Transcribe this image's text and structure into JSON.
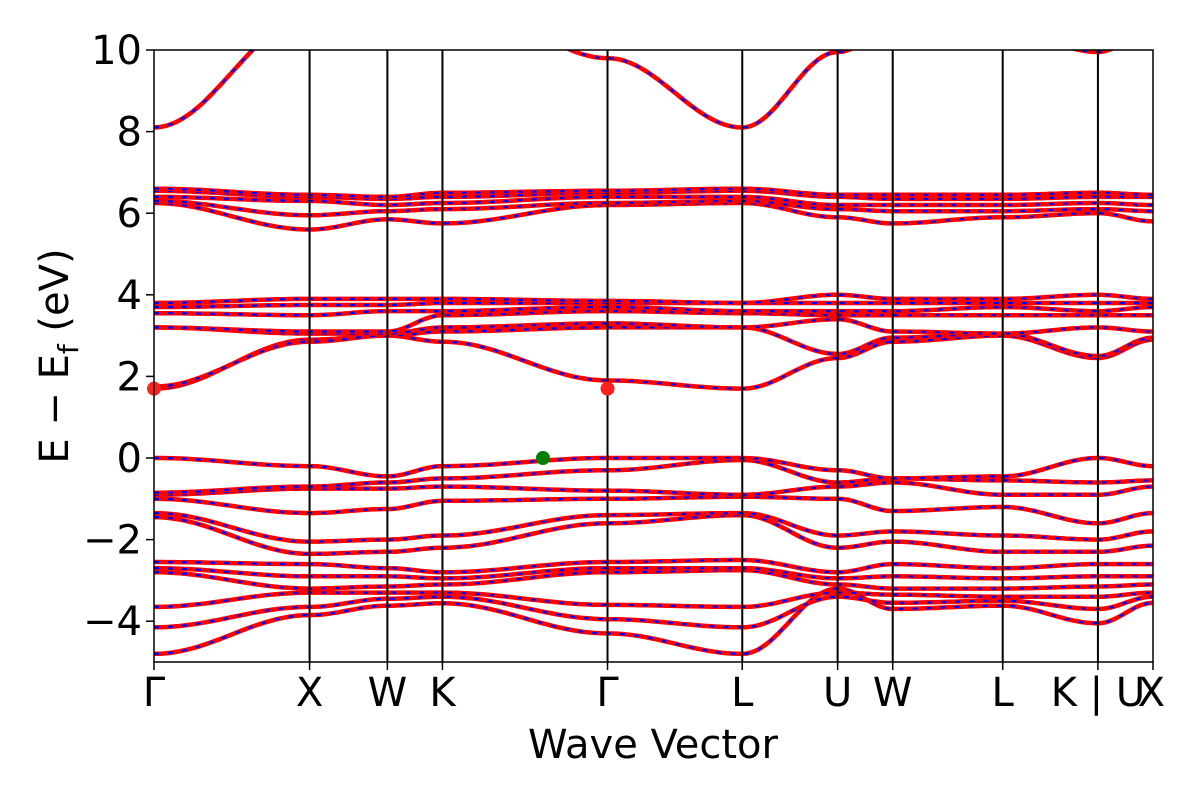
{
  "chart_data": {
    "type": "line",
    "xlabel": "Wave Vector",
    "ylabel": "E − E",
    "ylabel_sub": "f",
    "ylabel_unit": " (eV)",
    "ylim": [
      -5,
      10
    ],
    "yticks": [
      {
        "value": 10,
        "label": "10"
      },
      {
        "value": 8,
        "label": "8"
      },
      {
        "value": 6,
        "label": "6"
      },
      {
        "value": 4,
        "label": "4"
      },
      {
        "value": 2,
        "label": "2"
      },
      {
        "value": 0,
        "label": "0"
      },
      {
        "value": -2,
        "label": "−2"
      },
      {
        "value": -4,
        "label": "−4"
      }
    ],
    "kpoints": [
      {
        "label": "Γ",
        "pos": 0
      },
      {
        "label": "X",
        "pos": 1
      },
      {
        "label": "W",
        "pos": 1.5
      },
      {
        "label": "K",
        "pos": 1.854
      },
      {
        "label": "Γ",
        "pos": 2.915
      },
      {
        "label": "L",
        "pos": 3.781
      },
      {
        "label": "U",
        "pos": 4.394
      },
      {
        "label": "W",
        "pos": 4.748
      },
      {
        "label": "L",
        "pos": 5.455
      },
      {
        "label": "K | U",
        "pos": 6.067
      },
      {
        "label": "X",
        "pos": 6.421
      }
    ],
    "xrange": [
      0,
      6.421
    ],
    "colors": {
      "band": "#ff0000",
      "dash": "#0000ff",
      "cbm": "#ff2020",
      "vbm": "#008000"
    },
    "cbm_points": [
      {
        "k": 0,
        "E": 1.7
      },
      {
        "k": 2.915,
        "E": 1.7
      }
    ],
    "vbm_points": [
      {
        "k": 2.5,
        "E": 0.0
      }
    ],
    "bands": [
      [
        -4.8,
        -3.85,
        -3.62,
        -3.56,
        -4.3,
        -4.8,
        -3.2,
        -3.7,
        -3.62,
        -4.05,
        -3.55,
        -3.8
      ],
      [
        -4.15,
        -3.65,
        -3.45,
        -3.4,
        -3.95,
        -4.15,
        -3.4,
        -3.55,
        -3.5,
        -3.7,
        -3.4,
        -3.6
      ],
      [
        -3.65,
        -3.3,
        -3.3,
        -3.3,
        -3.6,
        -3.65,
        -3.3,
        -3.35,
        -3.4,
        -3.4,
        -3.3,
        -3.3
      ],
      [
        -2.8,
        -3.2,
        -3.15,
        -3.1,
        -2.8,
        -2.75,
        -3.1,
        -3.2,
        -3.2,
        -3.15,
        -3.1,
        -3.2
      ],
      [
        -2.7,
        -2.9,
        -2.9,
        -2.95,
        -2.7,
        -2.7,
        -2.95,
        -2.9,
        -2.95,
        -2.9,
        -2.9,
        -2.9
      ],
      [
        -2.55,
        -2.6,
        -2.7,
        -2.8,
        -2.55,
        -2.5,
        -2.8,
        -2.6,
        -2.7,
        -2.6,
        -2.6,
        -2.6
      ],
      [
        -1.45,
        -2.35,
        -2.3,
        -2.2,
        -1.6,
        -1.4,
        -2.2,
        -2.05,
        -2.3,
        -2.3,
        -2.15,
        -2.3
      ],
      [
        -1.35,
        -2.05,
        -2.0,
        -1.9,
        -1.4,
        -1.35,
        -1.9,
        -1.8,
        -1.9,
        -2.0,
        -1.8,
        -2.05
      ],
      [
        -1.0,
        -1.35,
        -1.25,
        -1.05,
        -1.0,
        -0.95,
        -1.0,
        -1.3,
        -1.2,
        -1.6,
        -1.35,
        -1.55
      ],
      [
        -0.9,
        -0.75,
        -0.75,
        -0.7,
        -0.8,
        -0.9,
        -0.7,
        -0.6,
        -0.9,
        -0.9,
        -0.7,
        -0.8
      ],
      [
        -0.85,
        -0.7,
        -0.6,
        -0.5,
        -0.3,
        -0.05,
        -0.6,
        -0.5,
        -0.55,
        -0.6,
        -0.55,
        -0.75
      ],
      [
        0.0,
        -0.2,
        -0.45,
        -0.2,
        0.0,
        0.0,
        -0.3,
        -0.5,
        -0.45,
        0.0,
        -0.2,
        -0.2
      ],
      [
        1.7,
        2.9,
        3.0,
        2.85,
        1.9,
        1.7,
        2.45,
        2.85,
        3.0,
        2.45,
        2.9,
        2.85
      ],
      [
        1.75,
        2.85,
        3.0,
        3.1,
        3.2,
        3.2,
        2.55,
        2.95,
        3.05,
        2.5,
        2.95,
        2.9
      ],
      [
        3.2,
        3.05,
        3.05,
        3.2,
        3.3,
        3.2,
        3.4,
        3.1,
        3.05,
        3.2,
        3.1,
        3.1
      ],
      [
        3.2,
        3.1,
        3.1,
        3.5,
        3.6,
        3.55,
        3.5,
        3.5,
        3.5,
        3.5,
        3.5,
        3.5
      ],
      [
        3.55,
        3.5,
        3.6,
        3.6,
        3.7,
        3.6,
        3.6,
        3.6,
        3.7,
        3.6,
        3.7,
        3.6
      ],
      [
        3.7,
        3.75,
        3.75,
        3.8,
        3.8,
        3.8,
        3.8,
        3.8,
        3.8,
        3.8,
        3.8,
        3.8
      ],
      [
        3.8,
        3.9,
        3.9,
        3.9,
        3.85,
        3.8,
        4.0,
        3.9,
        3.9,
        4.0,
        3.9,
        3.9
      ],
      [
        6.25,
        5.6,
        5.85,
        5.75,
        6.2,
        6.25,
        5.9,
        5.75,
        5.9,
        6.0,
        5.8,
        5.6
      ],
      [
        6.3,
        5.95,
        6.05,
        6.1,
        6.25,
        6.3,
        6.1,
        6.05,
        6.05,
        6.1,
        6.05,
        6.0
      ],
      [
        6.4,
        6.3,
        6.2,
        6.25,
        6.4,
        6.4,
        6.2,
        6.2,
        6.2,
        6.25,
        6.2,
        6.2
      ],
      [
        6.55,
        6.4,
        6.35,
        6.4,
        6.5,
        6.55,
        6.4,
        6.35,
        6.35,
        6.4,
        6.4,
        6.35
      ],
      [
        6.6,
        6.45,
        6.4,
        6.5,
        6.55,
        6.6,
        6.45,
        6.45,
        6.45,
        6.5,
        6.45,
        6.45
      ],
      [
        8.1,
        10.8,
        11.5,
        11.5,
        9.8,
        8.1,
        9.95,
        10.5,
        10.5,
        9.95,
        10.5,
        10.8
      ]
    ]
  }
}
